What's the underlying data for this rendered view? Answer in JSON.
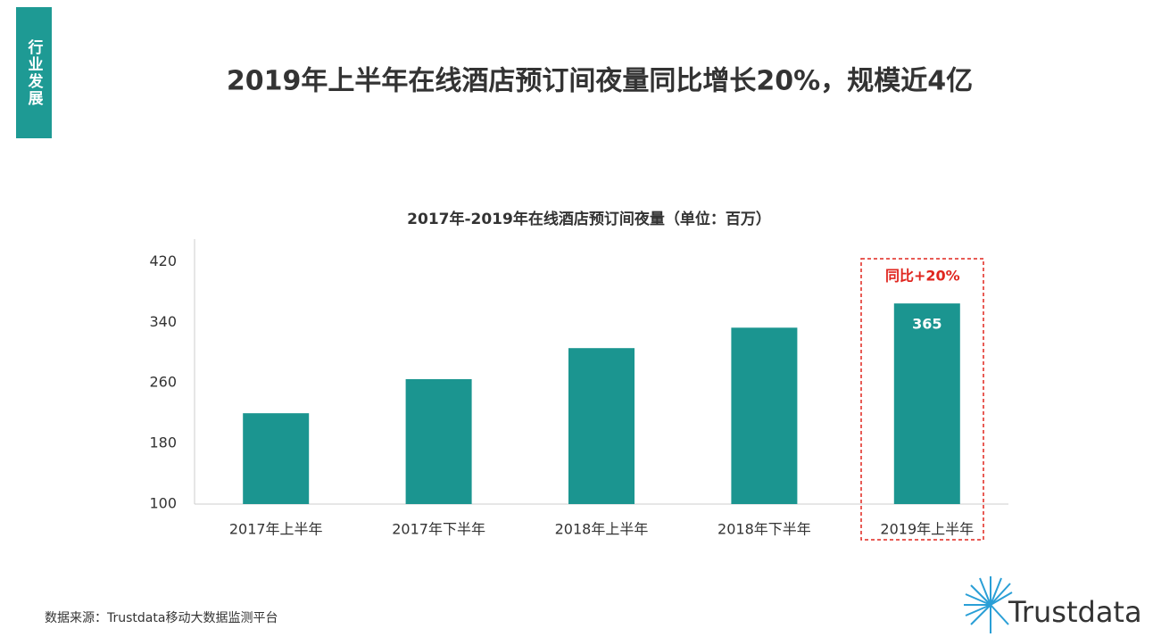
{
  "section_tab": "行业发展",
  "headline": "2019年上半年在线酒店预订间夜量同比增长20%，规模近4亿",
  "chart_data": {
    "type": "bar",
    "title": "2017年-2019年在线酒店预订间夜量（单位：百万）",
    "categories": [
      "2017年上半年",
      "2017年下半年",
      "2018年上半年",
      "2018年下半年",
      "2019年上半年"
    ],
    "values": [
      220,
      265,
      306,
      333,
      365
    ],
    "value_labels": [
      null,
      null,
      null,
      null,
      "365"
    ],
    "color": "#1b9590",
    "ylim": [
      100,
      450
    ],
    "yticks": [
      100,
      180,
      260,
      340,
      420
    ],
    "grid": false,
    "annotation": "同比+20%",
    "annotation_color": "#e0261f"
  },
  "source": "数据来源：Trustdata移动大数据监测平台",
  "logo": "Trustdata"
}
